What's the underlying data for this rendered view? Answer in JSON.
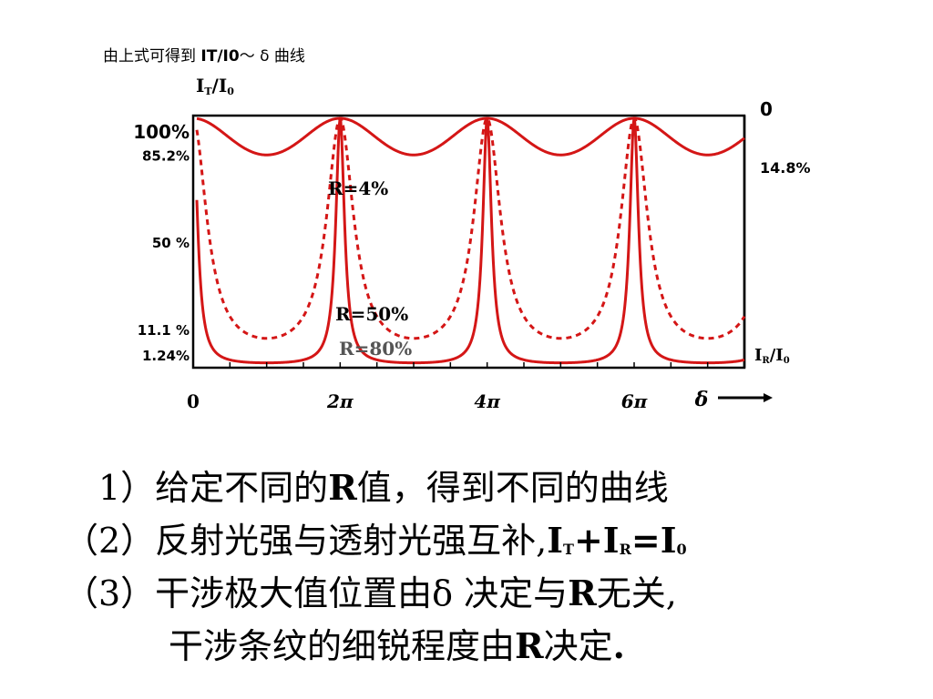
{
  "caption": {
    "prefix": "由上式可得到 ",
    "bold": "IT/I0",
    "suffix": "～ δ 曲线"
  },
  "chart_data": {
    "type": "line",
    "title": "",
    "ylabel_left": "I_T/I_0",
    "ylabel_right": "I_R/I_0",
    "xlabel": "δ ⟶",
    "x_ticks": [
      "0",
      "2π",
      "4π",
      "6π"
    ],
    "y_ticks_left": [
      "100%",
      "85.2%",
      "50 %",
      "11.1 %",
      "1.24%"
    ],
    "y_ticks_right": [
      "0",
      "14.8%"
    ],
    "xlim": [
      0,
      7.5
    ],
    "xlim_units": "π",
    "ylim": [
      0,
      1
    ],
    "grid": false,
    "series": [
      {
        "name": "R=4%",
        "reflectance": 0.04,
        "min_transmission": 0.852,
        "style": "solid"
      },
      {
        "name": "R=50%",
        "reflectance": 0.5,
        "min_transmission": 0.111,
        "style": "dashed"
      },
      {
        "name": "R=80%",
        "reflectance": 0.8,
        "min_transmission": 0.0124,
        "style": "solid"
      }
    ],
    "colors": {
      "curve": "#d41616",
      "axis": "#000000",
      "label_gray": "#555555"
    }
  },
  "text": {
    "l1": {
      "a": "1）给定不同的",
      "b": "R",
      "c": "值，得到不同的曲线"
    },
    "l2": {
      "a": "（2）反射光强与透射光强互补,",
      "b1": "I",
      "s1": "T",
      "b2": "+I",
      "s2": "R",
      "b3": "=I",
      "s3": "0"
    },
    "l3": {
      "a": "（3）干涉极大值位置由δ 决定与",
      "b": "R",
      "c": "无关,"
    },
    "l4": {
      "a": "干涉条纹的细锐程度由",
      "b": "R",
      "c": "决定",
      "d": "."
    }
  }
}
